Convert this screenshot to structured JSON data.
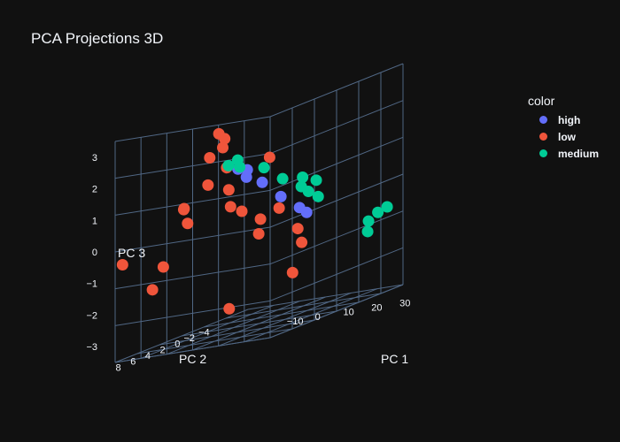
{
  "chart_data": {
    "type": "scatter3d",
    "title": "PCA Projections 3D",
    "axes": {
      "x": {
        "label": "PC 1",
        "ticks": [
          "−10",
          "0",
          "10",
          "20",
          "30"
        ]
      },
      "y": {
        "label": "PC 2",
        "ticks": [
          "−4",
          "−2",
          "0",
          "2",
          "4",
          "6",
          "8"
        ]
      },
      "z": {
        "label": "PC 3",
        "ticks": [
          "−3",
          "−2",
          "−1",
          "0",
          "1",
          "2",
          "3"
        ]
      }
    },
    "legend": {
      "title": "color",
      "placement": "top-right"
    },
    "series": [
      {
        "name": "high",
        "color": "#636efa",
        "points": [
          {
            "x": 0,
            "y": 1,
            "z": 1.5
          },
          {
            "x": 2,
            "y": 0.5,
            "z": 1.4
          },
          {
            "x": 3,
            "y": 1,
            "z": 1.2
          },
          {
            "x": 6,
            "y": 0,
            "z": 0.9
          },
          {
            "x": 10,
            "y": -1,
            "z": 0.3
          },
          {
            "x": 14,
            "y": -2,
            "z": -0.2
          },
          {
            "x": 16,
            "y": -2.2,
            "z": -0.4
          }
        ]
      },
      {
        "name": "low",
        "color": "#ef553b",
        "points": [
          {
            "x": -12,
            "y": -1,
            "z": 2.6
          },
          {
            "x": -8,
            "y": 0,
            "z": 2.2
          },
          {
            "x": -10,
            "y": 1,
            "z": 2.0
          },
          {
            "x": -6,
            "y": 0.5,
            "z": 2.5
          },
          {
            "x": -4,
            "y": 1,
            "z": 1.6
          },
          {
            "x": -14,
            "y": 3,
            "z": 0.6
          },
          {
            "x": -10,
            "y": 4,
            "z": 0.2
          },
          {
            "x": -6,
            "y": 6,
            "z": 0.8
          },
          {
            "x": 0,
            "y": 2,
            "z": 0.4
          },
          {
            "x": 4,
            "y": 2,
            "z": 0.2
          },
          {
            "x": 8,
            "y": 1,
            "z": -0.2
          },
          {
            "x": 12,
            "y": 0,
            "z": 0.0
          },
          {
            "x": 16,
            "y": -1,
            "z": -0.8
          },
          {
            "x": 20,
            "y": 0,
            "z": -1.2
          },
          {
            "x": 22,
            "y": 2,
            "z": -2.0
          },
          {
            "x": 10,
            "y": 6,
            "z": -2.6
          },
          {
            "x": -16,
            "y": 5,
            "z": -1.0
          },
          {
            "x": -12,
            "y": 8,
            "z": -1.5
          },
          {
            "x": -20,
            "y": 9,
            "z": -0.5
          },
          {
            "x": 2,
            "y": 3,
            "z": 1.0
          },
          {
            "x": 6,
            "y": -1,
            "z": 1.6
          },
          {
            "x": 10,
            "y": 2,
            "z": -0.6
          },
          {
            "x": -8,
            "y": 2,
            "z": 1.2
          }
        ]
      },
      {
        "name": "medium",
        "color": "#00cc96",
        "points": [
          {
            "x": -6,
            "y": 0,
            "z": 1.6
          },
          {
            "x": -4,
            "y": -0.5,
            "z": 1.7
          },
          {
            "x": -2,
            "y": 0,
            "z": 1.5
          },
          {
            "x": 4,
            "y": -1,
            "z": 1.3
          },
          {
            "x": 12,
            "y": -3,
            "z": 0.4
          },
          {
            "x": 14,
            "y": -3.2,
            "z": 0.2
          },
          {
            "x": 16,
            "y": -3.5,
            "z": 0.5
          },
          {
            "x": 18,
            "y": -3,
            "z": 0.0
          },
          {
            "x": 13,
            "y": -2.8,
            "z": 0.7
          },
          {
            "x": 28,
            "y": -6,
            "z": -1.2
          },
          {
            "x": 30,
            "y": -6.5,
            "z": -1.0
          },
          {
            "x": 29,
            "y": -5.5,
            "z": -1.5
          },
          {
            "x": 32,
            "y": -7,
            "z": -0.9
          },
          {
            "x": 8,
            "y": -2,
            "z": 0.8
          }
        ]
      }
    ]
  }
}
